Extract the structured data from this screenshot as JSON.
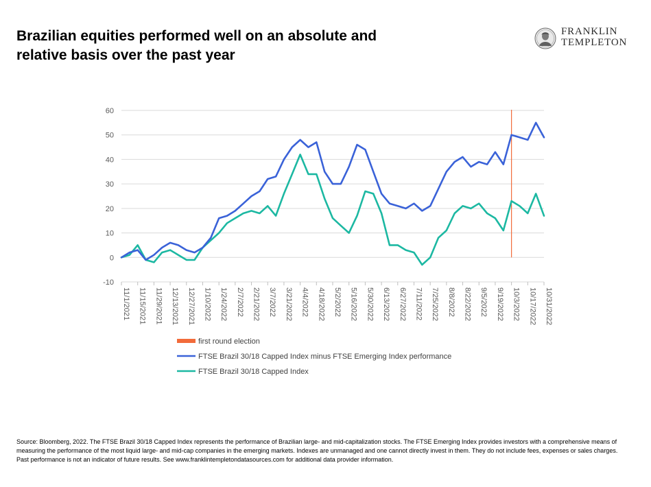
{
  "header": {
    "title_line1": "Brazilian equities performed well on an absolute and",
    "title_line2": "relative basis over the past year"
  },
  "logo": {
    "line1": "FRANKLIN",
    "line2": "TEMPLETON"
  },
  "footer": {
    "source": "Source: Bloomberg, 2022. The FTSE Brazil 30/18 Capped Index represents the performance of Brazilian large- and mid-capitalization stocks. The FTSE Emerging Index provides investors with a comprehensive means of measuring the performance of the most liquid large- and mid-cap companies in the emerging markets. Indexes are unmanaged and one cannot directly invest in them. They do not include fees, expenses or sales charges. Past performance is not an indicator of future results. See www.franklintempletondatasources.com for additional data provider information."
  },
  "chart_data": {
    "type": "line",
    "title": "",
    "xlabel": "",
    "ylabel": "",
    "ylim": [
      -10,
      60
    ],
    "yticks": [
      -10,
      0,
      10,
      20,
      30,
      40,
      50,
      60
    ],
    "grid": true,
    "legend_position": "bottom-left",
    "x_ticks": [
      "11/1/2021",
      "11/15/2021",
      "11/29/2021",
      "12/13/2021",
      "12/27/2021",
      "1/10/2022",
      "1/24/2022",
      "2/7/2022",
      "2/21/2022",
      "3/7/2022",
      "3/21/2022",
      "4/4/2022",
      "4/18/2022",
      "5/2/2022",
      "5/16/2022",
      "5/30/2022",
      "6/13/2022",
      "6/27/2022",
      "7/11/2022",
      "7/25/2022",
      "8/8/2022",
      "8/22/2022",
      "9/5/2022",
      "9/19/2022",
      "10/3/2022",
      "10/17/2022",
      "10/31/2022"
    ],
    "event_marker": {
      "name": "first round election",
      "x": "10/3/2022",
      "color": "#f26b3a"
    },
    "series": [
      {
        "name": "FTSE Brazil 30/18 Capped Index minus FTSE Emerging Index performance",
        "color": "#3a62d8",
        "x": [
          "11/1/2021",
          "11/8/2021",
          "11/15/2021",
          "11/22/2021",
          "11/29/2021",
          "12/6/2021",
          "12/13/2021",
          "12/20/2021",
          "12/27/2021",
          "1/3/2022",
          "1/10/2022",
          "1/17/2022",
          "1/24/2022",
          "1/31/2022",
          "2/7/2022",
          "2/14/2022",
          "2/21/2022",
          "2/28/2022",
          "3/7/2022",
          "3/14/2022",
          "3/21/2022",
          "3/28/2022",
          "4/4/2022",
          "4/11/2022",
          "4/18/2022",
          "4/25/2022",
          "5/2/2022",
          "5/9/2022",
          "5/16/2022",
          "5/23/2022",
          "5/30/2022",
          "6/6/2022",
          "6/13/2022",
          "6/20/2022",
          "6/27/2022",
          "7/4/2022",
          "7/11/2022",
          "7/18/2022",
          "7/25/2022",
          "8/1/2022",
          "8/8/2022",
          "8/15/2022",
          "8/22/2022",
          "8/29/2022",
          "9/5/2022",
          "9/12/2022",
          "9/19/2022",
          "9/26/2022",
          "10/3/2022",
          "10/10/2022",
          "10/17/2022",
          "10/24/2022",
          "10/31/2022"
        ],
        "values": [
          0,
          2,
          3,
          -1,
          1,
          4,
          6,
          5,
          3,
          2,
          4,
          8,
          16,
          17,
          19,
          22,
          25,
          27,
          32,
          33,
          40,
          45,
          48,
          45,
          47,
          35,
          30,
          30,
          37,
          46,
          44,
          35,
          26,
          22,
          21,
          20,
          22,
          19,
          21,
          28,
          35,
          39,
          41,
          37,
          39,
          38,
          43,
          38,
          50,
          49,
          48,
          55,
          49
        ]
      },
      {
        "name": "FTSE Brazil 30/18 Capped Index",
        "color": "#1cb8a2",
        "x": [
          "11/1/2021",
          "11/8/2021",
          "11/15/2021",
          "11/22/2021",
          "11/29/2021",
          "12/6/2021",
          "12/13/2021",
          "12/20/2021",
          "12/27/2021",
          "1/3/2022",
          "1/10/2022",
          "1/17/2022",
          "1/24/2022",
          "1/31/2022",
          "2/7/2022",
          "2/14/2022",
          "2/21/2022",
          "2/28/2022",
          "3/7/2022",
          "3/14/2022",
          "3/21/2022",
          "3/28/2022",
          "4/4/2022",
          "4/11/2022",
          "4/18/2022",
          "4/25/2022",
          "5/2/2022",
          "5/9/2022",
          "5/16/2022",
          "5/23/2022",
          "5/30/2022",
          "6/6/2022",
          "6/13/2022",
          "6/20/2022",
          "6/27/2022",
          "7/4/2022",
          "7/11/2022",
          "7/18/2022",
          "7/25/2022",
          "8/1/2022",
          "8/8/2022",
          "8/15/2022",
          "8/22/2022",
          "8/29/2022",
          "9/5/2022",
          "9/12/2022",
          "9/19/2022",
          "9/26/2022",
          "10/3/2022",
          "10/10/2022",
          "10/17/2022",
          "10/24/2022",
          "10/31/2022"
        ],
        "values": [
          0,
          1,
          5,
          -1,
          -2,
          2,
          3,
          1,
          -1,
          -1,
          4,
          7,
          10,
          14,
          16,
          18,
          19,
          18,
          21,
          17,
          26,
          34,
          42,
          34,
          34,
          24,
          16,
          13,
          10,
          17,
          27,
          26,
          18,
          5,
          5,
          3,
          2,
          -3,
          0,
          8,
          11,
          18,
          21,
          20,
          22,
          18,
          16,
          11,
          23,
          21,
          18,
          26,
          17
        ]
      }
    ]
  }
}
